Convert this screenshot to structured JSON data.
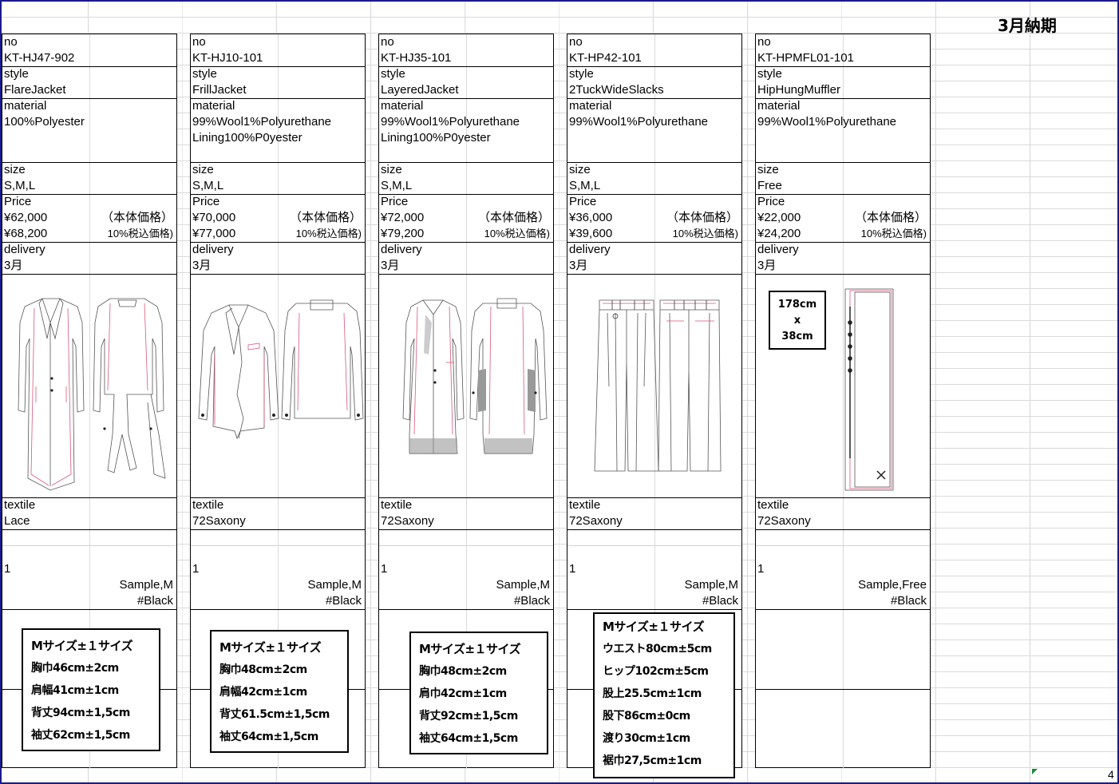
{
  "header": {
    "title": "3月納期",
    "page_number": "4"
  },
  "labels": {
    "no": "no",
    "style": "style",
    "material": "material",
    "size": "size",
    "price": "Price",
    "delivery": "delivery",
    "textile": "textile",
    "tax_excl": "（本体価格）",
    "tax_incl": "10%税込価格)"
  },
  "products": [
    {
      "no": "KT-HJ47-902",
      "style": "FlareJacket",
      "material1": "100%Polyester",
      "material2": "",
      "size": "S,M,L",
      "price": "¥62,000",
      "price_tax": "¥68,200",
      "delivery": "3月",
      "textile": "Lace",
      "qty": "1",
      "sample": "Sample,M",
      "color": "#Black",
      "spec": [
        "Mサイズ±１サイズ",
        "胸巾46cm±2cm",
        "肩幅41cm±1cm",
        "背丈94cm±1,5cm",
        "袖丈62cm±1,5cm"
      ]
    },
    {
      "no": "KT-HJ10-101",
      "style": "FrillJacket",
      "material1": "99%Wool1%Polyurethane",
      "material2": "Lining100%P0yester",
      "size": "S,M,L",
      "price": "¥70,000",
      "price_tax": "¥77,000",
      "delivery": "3月",
      "textile": "72Saxony",
      "qty": "1",
      "sample": "Sample,M",
      "color": "#Black",
      "spec": [
        "Mサイズ±１サイズ",
        "胸巾48cm±2cm",
        "肩幅42cm±1cm",
        "背丈61.5cm±1,5cm",
        "袖丈64cm±1,5cm"
      ]
    },
    {
      "no": "KT-HJ35-101",
      "style": "LayeredJacket",
      "material1": "99%Wool1%Polyurethane",
      "material2": "Lining100%P0yester",
      "size": "S,M,L",
      "price": "¥72,000",
      "price_tax": "¥79,200",
      "delivery": "3月",
      "textile": "72Saxony",
      "qty": "1",
      "sample": "Sample,M",
      "color": "#Black",
      "spec": [
        "Mサイズ±１サイズ",
        "胸巾48cm±2cm",
        "肩巾42cm±1cm",
        "背丈92cm±1,5cm",
        "袖丈64cm±1,5cm"
      ]
    },
    {
      "no": "KT-HP42-101",
      "style": "2TuckWideSlacks",
      "material1": "99%Wool1%Polyurethane",
      "material2": "",
      "size": "S,M,L",
      "price": "¥36,000",
      "price_tax": "¥39,600",
      "delivery": "3月",
      "textile": "72Saxony",
      "qty": "1",
      "sample": "Sample,M",
      "color": "#Black",
      "spec": [
        "Mサイズ±１サイズ",
        "ウエスト80cm±5cm",
        "ヒップ102cm±5cm",
        "股上25.5cm±1cm",
        "股下86cm±0cm",
        "渡り30cm±1cm",
        "裾巾27,5cm±1cm"
      ]
    },
    {
      "no": "KT-HPMFL01-101",
      "style": "HipHungMuffler",
      "material1": "99%Wool1%Polyurethane",
      "material2": "",
      "size": "Free",
      "price": "¥22,000",
      "price_tax": "¥24,200",
      "delivery": "3月",
      "textile": "72Saxony",
      "qty": "1",
      "sample": "Sample,Free",
      "color": "#Black",
      "dimension": [
        "178cm",
        "x",
        "38cm"
      ],
      "spec": []
    }
  ]
}
